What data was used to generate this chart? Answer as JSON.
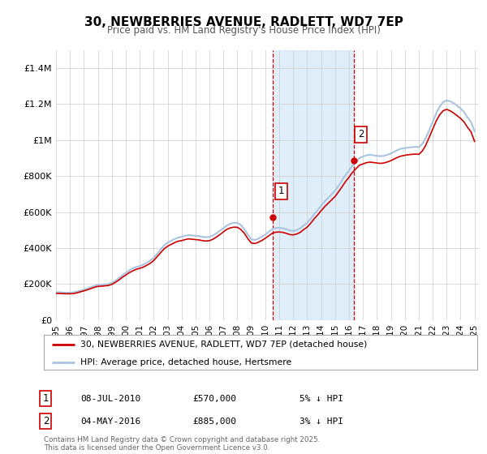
{
  "title": "30, NEWBERRIES AVENUE, RADLETT, WD7 7EP",
  "subtitle": "Price paid vs. HM Land Registry's House Price Index (HPI)",
  "bg_color": "#ffffff",
  "plot_bg_color": "#ffffff",
  "grid_color": "#cccccc",
  "ylim": [
    0,
    1500000
  ],
  "yticks": [
    0,
    200000,
    400000,
    600000,
    800000,
    1000000,
    1200000,
    1400000
  ],
  "ytick_labels": [
    "£0",
    "£200K",
    "£400K",
    "£600K",
    "£800K",
    "£1M",
    "£1.2M",
    "£1.4M"
  ],
  "hpi_color": "#aac4e0",
  "price_color": "#cc0000",
  "sale1_date": 2010.52,
  "sale1_price": 570000,
  "sale1_label": "1",
  "sale2_date": 2016.34,
  "sale2_price": 885000,
  "sale2_label": "2",
  "legend_label_price": "30, NEWBERRIES AVENUE, RADLETT, WD7 7EP (detached house)",
  "legend_label_hpi": "HPI: Average price, detached house, Hertsmere",
  "annotation1": [
    "1",
    "08-JUL-2010",
    "£570,000",
    "5% ↓ HPI"
  ],
  "annotation2": [
    "2",
    "04-MAY-2016",
    "£885,000",
    "3% ↓ HPI"
  ],
  "footer": "Contains HM Land Registry data © Crown copyright and database right 2025.\nThis data is licensed under the Open Government Licence v3.0.",
  "hpi_years": [
    1995.0,
    1995.25,
    1995.5,
    1995.75,
    1996.0,
    1996.25,
    1996.5,
    1996.75,
    1997.0,
    1997.25,
    1997.5,
    1997.75,
    1998.0,
    1998.25,
    1998.5,
    1998.75,
    1999.0,
    1999.25,
    1999.5,
    1999.75,
    2000.0,
    2000.25,
    2000.5,
    2000.75,
    2001.0,
    2001.25,
    2001.5,
    2001.75,
    2002.0,
    2002.25,
    2002.5,
    2002.75,
    2003.0,
    2003.25,
    2003.5,
    2003.75,
    2004.0,
    2004.25,
    2004.5,
    2004.75,
    2005.0,
    2005.25,
    2005.5,
    2005.75,
    2006.0,
    2006.25,
    2006.5,
    2006.75,
    2007.0,
    2007.25,
    2007.5,
    2007.75,
    2008.0,
    2008.25,
    2008.5,
    2008.75,
    2009.0,
    2009.25,
    2009.5,
    2009.75,
    2010.0,
    2010.25,
    2010.5,
    2010.75,
    2011.0,
    2011.25,
    2011.5,
    2011.75,
    2012.0,
    2012.25,
    2012.5,
    2012.75,
    2013.0,
    2013.25,
    2013.5,
    2013.75,
    2014.0,
    2014.25,
    2014.5,
    2014.75,
    2015.0,
    2015.25,
    2015.5,
    2015.75,
    2016.0,
    2016.25,
    2016.5,
    2016.75,
    2017.0,
    2017.25,
    2017.5,
    2017.75,
    2018.0,
    2018.25,
    2018.5,
    2018.75,
    2019.0,
    2019.25,
    2019.5,
    2019.75,
    2020.0,
    2020.25,
    2020.5,
    2020.75,
    2021.0,
    2021.25,
    2021.5,
    2021.75,
    2022.0,
    2022.25,
    2022.5,
    2022.75,
    2023.0,
    2023.25,
    2023.5,
    2023.75,
    2024.0,
    2024.25,
    2024.5,
    2024.75,
    2025.0
  ],
  "hpi_vals": [
    155000,
    155000,
    153000,
    152000,
    152000,
    154000,
    158000,
    163000,
    168000,
    175000,
    183000,
    190000,
    195000,
    196000,
    198000,
    200000,
    207000,
    218000,
    233000,
    248000,
    262000,
    276000,
    287000,
    295000,
    300000,
    308000,
    318000,
    330000,
    345000,
    368000,
    392000,
    415000,
    430000,
    440000,
    450000,
    458000,
    462000,
    468000,
    472000,
    470000,
    468000,
    466000,
    462000,
    460000,
    462000,
    470000,
    482000,
    496000,
    510000,
    525000,
    535000,
    540000,
    540000,
    528000,
    505000,
    475000,
    448000,
    445000,
    452000,
    463000,
    475000,
    490000,
    505000,
    512000,
    512000,
    510000,
    505000,
    498000,
    495000,
    500000,
    510000,
    525000,
    540000,
    562000,
    588000,
    610000,
    635000,
    658000,
    678000,
    698000,
    718000,
    745000,
    775000,
    805000,
    830000,
    858000,
    880000,
    900000,
    908000,
    915000,
    918000,
    915000,
    912000,
    910000,
    912000,
    918000,
    925000,
    935000,
    945000,
    952000,
    955000,
    958000,
    960000,
    962000,
    960000,
    978000,
    1010000,
    1055000,
    1100000,
    1148000,
    1185000,
    1210000,
    1220000,
    1215000,
    1205000,
    1190000,
    1175000,
    1155000,
    1125000,
    1100000,
    1048000
  ],
  "price_years": [
    1995.0,
    1995.25,
    1995.5,
    1995.75,
    1996.0,
    1996.25,
    1996.5,
    1996.75,
    1997.0,
    1997.25,
    1997.5,
    1997.75,
    1998.0,
    1998.25,
    1998.5,
    1998.75,
    1999.0,
    1999.25,
    1999.5,
    1999.75,
    2000.0,
    2000.25,
    2000.5,
    2000.75,
    2001.0,
    2001.25,
    2001.5,
    2001.75,
    2002.0,
    2002.25,
    2002.5,
    2002.75,
    2003.0,
    2003.25,
    2003.5,
    2003.75,
    2004.0,
    2004.25,
    2004.5,
    2004.75,
    2005.0,
    2005.25,
    2005.5,
    2005.75,
    2006.0,
    2006.25,
    2006.5,
    2006.75,
    2007.0,
    2007.25,
    2007.5,
    2007.75,
    2008.0,
    2008.25,
    2008.5,
    2008.75,
    2009.0,
    2009.25,
    2009.5,
    2009.75,
    2010.0,
    2010.25,
    2010.5,
    2010.75,
    2011.0,
    2011.25,
    2011.5,
    2011.75,
    2012.0,
    2012.25,
    2012.5,
    2012.75,
    2013.0,
    2013.25,
    2013.5,
    2013.75,
    2014.0,
    2014.25,
    2014.5,
    2014.75,
    2015.0,
    2015.25,
    2015.5,
    2015.75,
    2016.0,
    2016.25,
    2016.5,
    2016.75,
    2017.0,
    2017.25,
    2017.5,
    2017.75,
    2018.0,
    2018.25,
    2018.5,
    2018.75,
    2019.0,
    2019.25,
    2019.5,
    2019.75,
    2020.0,
    2020.25,
    2020.5,
    2020.75,
    2021.0,
    2021.25,
    2021.5,
    2021.75,
    2022.0,
    2022.25,
    2022.5,
    2022.75,
    2023.0,
    2023.25,
    2023.5,
    2023.75,
    2024.0,
    2024.25,
    2024.5,
    2024.75,
    2025.0
  ],
  "price_vals": [
    148000,
    148000,
    147000,
    146000,
    146000,
    147000,
    151000,
    157000,
    162000,
    168000,
    175000,
    182000,
    187000,
    188000,
    190000,
    192000,
    198000,
    209000,
    222000,
    237000,
    250000,
    263000,
    273000,
    282000,
    287000,
    294000,
    304000,
    315000,
    330000,
    352000,
    374000,
    396000,
    410000,
    420000,
    430000,
    438000,
    441000,
    447000,
    451000,
    449000,
    447000,
    445000,
    441000,
    439000,
    441000,
    449000,
    461000,
    475000,
    490000,
    504000,
    512000,
    516000,
    515000,
    503000,
    482000,
    452000,
    428000,
    425000,
    432000,
    442000,
    454000,
    468000,
    482000,
    488000,
    489000,
    487000,
    482000,
    475000,
    473000,
    478000,
    487000,
    502000,
    516000,
    537000,
    562000,
    583000,
    607000,
    629000,
    648000,
    667000,
    686000,
    712000,
    740000,
    769000,
    793000,
    820000,
    840000,
    860000,
    867000,
    874000,
    877000,
    875000,
    872000,
    870000,
    872000,
    878000,
    885000,
    895000,
    904000,
    911000,
    915000,
    918000,
    920000,
    922000,
    920000,
    938000,
    970000,
    1015000,
    1060000,
    1105000,
    1140000,
    1162000,
    1170000,
    1162000,
    1150000,
    1135000,
    1120000,
    1100000,
    1070000,
    1045000,
    992000
  ]
}
